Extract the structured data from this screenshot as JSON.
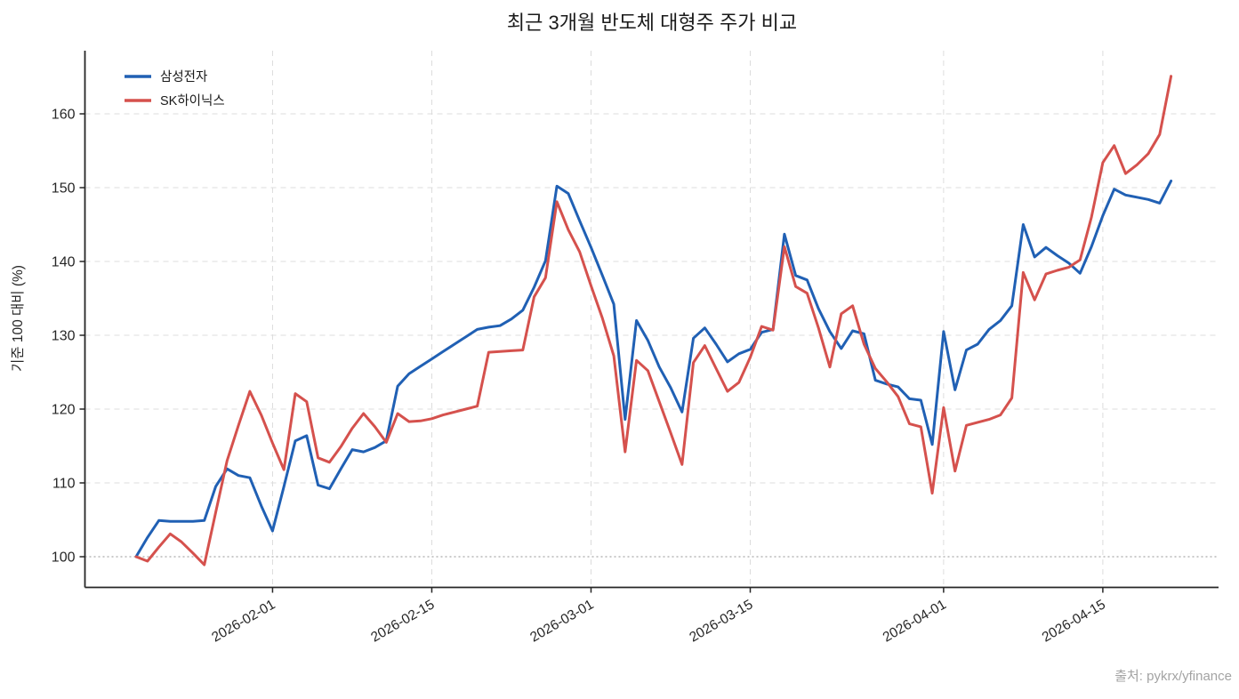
{
  "chart_data": {
    "type": "line",
    "title": "최근 3개월 반도체 대형주 주가 비교",
    "ylabel": "기준 100 대비 (%)",
    "source": "출처: pykrx/yfinance",
    "grid": true,
    "legend_position": "upper left",
    "baseline": 100,
    "ylim": [
      96,
      168
    ],
    "y_ticks": [
      100,
      110,
      120,
      130,
      140,
      150,
      160
    ],
    "x_ticks": [
      "2026-02-01",
      "2026-02-15",
      "2026-03-01",
      "2026-03-15",
      "2026-04-01",
      "2026-04-15"
    ],
    "x": [
      "2026-01-20",
      "2026-01-21",
      "2026-01-22",
      "2026-01-23",
      "2026-01-24",
      "2026-01-25",
      "2026-01-26",
      "2026-01-27",
      "2026-01-28",
      "2026-01-29",
      "2026-01-30",
      "2026-01-31",
      "2026-02-01",
      "2026-02-02",
      "2026-02-03",
      "2026-02-04",
      "2026-02-05",
      "2026-02-06",
      "2026-02-07",
      "2026-02-08",
      "2026-02-09",
      "2026-02-10",
      "2026-02-11",
      "2026-02-12",
      "2026-02-13",
      "2026-02-14",
      "2026-02-15",
      "2026-02-16",
      "2026-02-17",
      "2026-02-18",
      "2026-02-19",
      "2026-02-20",
      "2026-02-21",
      "2026-02-22",
      "2026-02-23",
      "2026-02-24",
      "2026-02-25",
      "2026-02-26",
      "2026-02-27",
      "2026-02-28",
      "2026-03-01",
      "2026-03-02",
      "2026-03-03",
      "2026-03-04",
      "2026-03-05",
      "2026-03-06",
      "2026-03-07",
      "2026-03-08",
      "2026-03-09",
      "2026-03-10",
      "2026-03-11",
      "2026-03-12",
      "2026-03-13",
      "2026-03-14",
      "2026-03-15",
      "2026-03-16",
      "2026-03-17",
      "2026-03-18",
      "2026-03-19",
      "2026-03-20",
      "2026-03-21",
      "2026-03-22",
      "2026-03-23",
      "2026-03-24",
      "2026-03-25",
      "2026-03-26",
      "2026-03-27",
      "2026-03-28",
      "2026-03-29",
      "2026-03-30",
      "2026-03-31",
      "2026-04-01",
      "2026-04-02",
      "2026-04-03",
      "2026-04-04",
      "2026-04-05",
      "2026-04-06",
      "2026-04-07",
      "2026-04-08",
      "2026-04-09",
      "2026-04-10",
      "2026-04-11",
      "2026-04-12",
      "2026-04-13",
      "2026-04-14",
      "2026-04-15",
      "2026-04-16",
      "2026-04-17",
      "2026-04-18",
      "2026-04-19",
      "2026-04-20",
      "2026-04-21"
    ],
    "series": [
      {
        "name": "삼성전자",
        "color": "#2060b4",
        "values": [
          100.0,
          102.6,
          104.9,
          104.8,
          104.8,
          104.8,
          104.9,
          109.5,
          111.9,
          111.0,
          110.7,
          106.9,
          103.5,
          109.5,
          115.7,
          116.4,
          109.7,
          109.2,
          111.9,
          114.5,
          114.2,
          114.8,
          115.7,
          123.1,
          124.8,
          125.8,
          126.8,
          127.8,
          128.8,
          129.8,
          130.8,
          131.1,
          131.3,
          132.2,
          133.4,
          136.5,
          140.1,
          150.2,
          149.2,
          145.5,
          141.9,
          138.1,
          134.2,
          118.6,
          132.0,
          129.3,
          125.7,
          122.9,
          119.6,
          129.6,
          131.0,
          128.8,
          126.4,
          127.5,
          128.1,
          130.4,
          130.8,
          143.7,
          138.1,
          137.5,
          133.6,
          130.5,
          128.2,
          130.6,
          130.2,
          123.9,
          123.4,
          123.0,
          121.4,
          121.2,
          115.2,
          130.5,
          122.6,
          128.0,
          128.8,
          130.8,
          132.0,
          134.0,
          145.0,
          140.6,
          141.9,
          140.8,
          139.8,
          138.4,
          142.0,
          146.2,
          149.8,
          149.0,
          148.7,
          148.4,
          147.9,
          150.9
        ]
      },
      {
        "name": "SK하이닉스",
        "color": "#d5514d",
        "values": [
          100.0,
          99.4,
          101.3,
          103.1,
          102.0,
          100.5,
          98.9,
          106.0,
          113.0,
          117.8,
          122.4,
          119.2,
          115.4,
          111.8,
          122.1,
          121.0,
          113.4,
          112.8,
          114.9,
          117.4,
          119.4,
          117.6,
          115.5,
          119.4,
          118.3,
          118.4,
          118.7,
          119.2,
          119.6,
          120.0,
          120.4,
          127.7,
          127.8,
          127.9,
          128.0,
          135.2,
          137.8,
          148.1,
          144.3,
          141.3,
          136.7,
          132.3,
          127.2,
          114.2,
          126.6,
          125.2,
          121.0,
          116.8,
          112.5,
          126.3,
          128.6,
          125.5,
          122.4,
          123.6,
          127.0,
          131.2,
          130.7,
          142.0,
          136.6,
          135.7,
          131.0,
          125.7,
          132.9,
          134.0,
          128.8,
          125.5,
          123.7,
          121.7,
          118.0,
          117.6,
          108.6,
          120.2,
          111.6,
          117.8,
          118.2,
          118.6,
          119.2,
          121.5,
          138.5,
          134.8,
          138.3,
          138.8,
          139.2,
          140.2,
          146.0,
          153.4,
          155.7,
          151.9,
          153.1,
          154.6,
          157.2,
          165.1
        ]
      }
    ]
  }
}
